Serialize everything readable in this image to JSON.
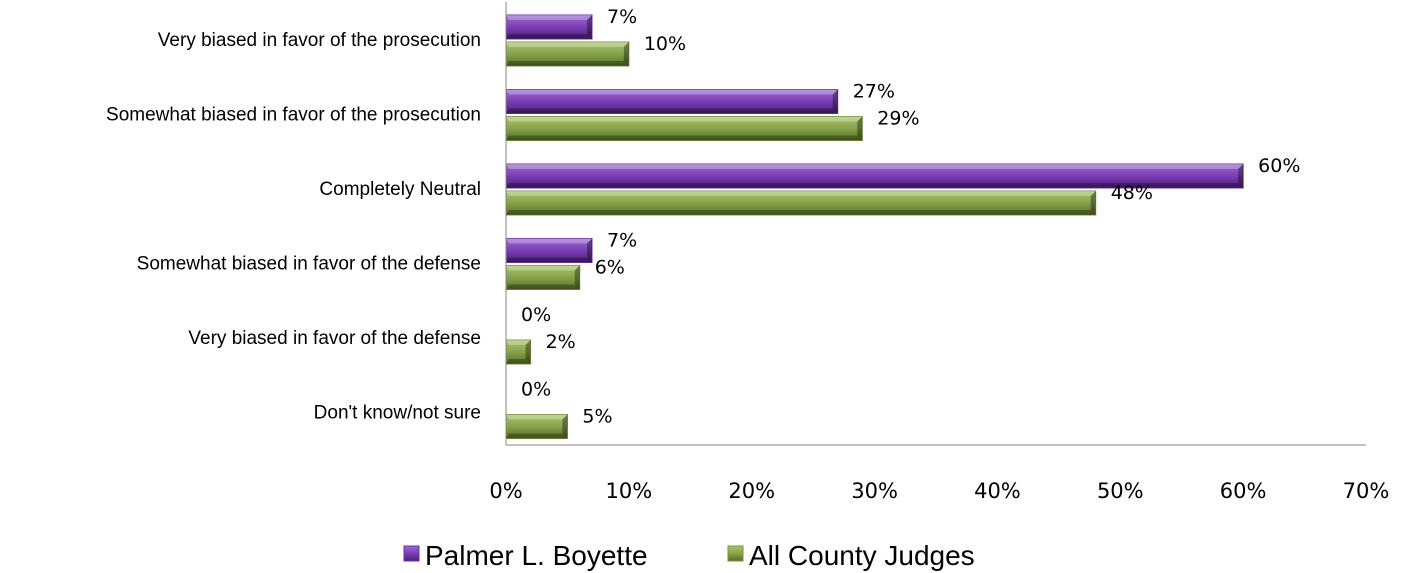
{
  "chart_data": {
    "type": "bar",
    "orientation": "horizontal",
    "categories": [
      "Very biased in favor of the prosecution",
      "Somewhat biased in favor of the prosecution",
      "Completely Neutral",
      "Somewhat biased in favor of the defense",
      "Very biased in favor of the defense",
      "Don't know/not sure"
    ],
    "series": [
      {
        "name": "Palmer L. Boyette",
        "values": [
          7,
          27,
          60,
          7,
          0,
          0
        ],
        "color": "#7030a0"
      },
      {
        "name": "All County Judges",
        "values": [
          10,
          29,
          48,
          6,
          2,
          5
        ],
        "color": "#77933c"
      }
    ],
    "value_labels": [
      [
        "7%",
        "27%",
        "60%",
        "7%",
        "0%",
        "0%"
      ],
      [
        "10%",
        "29%",
        "48%",
        "6%",
        "2%",
        "5%"
      ]
    ],
    "xlim": [
      0,
      70
    ],
    "x_ticks": [
      "0%",
      "10%",
      "20%",
      "30%",
      "40%",
      "50%",
      "60%",
      "70%"
    ],
    "grid": false,
    "legend_position": "bottom"
  }
}
